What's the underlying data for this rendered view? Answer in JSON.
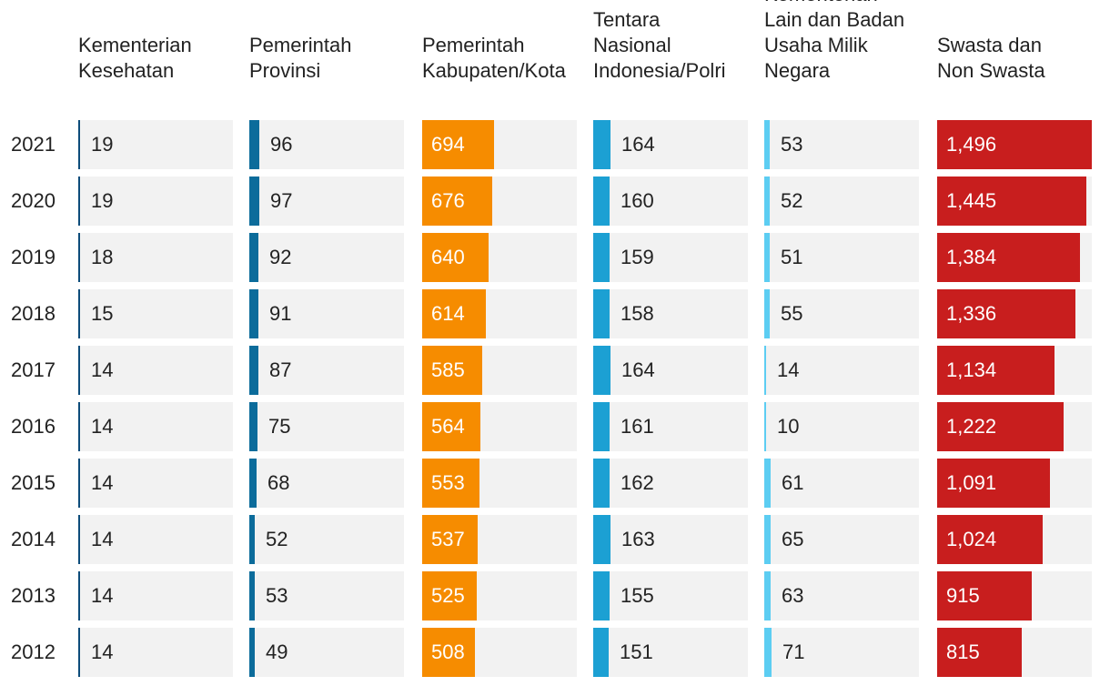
{
  "chart_data": {
    "type": "bar",
    "title": "",
    "categories": [
      "2021",
      "2020",
      "2019",
      "2018",
      "2017",
      "2016",
      "2015",
      "2014",
      "2013",
      "2012"
    ],
    "series": [
      {
        "name": "Kementerian\nKesehatan",
        "color": "#0d4c7a",
        "max": 1496,
        "values": [
          19,
          19,
          18,
          15,
          14,
          14,
          14,
          14,
          14,
          14
        ]
      },
      {
        "name": "Pemerintah\nProvinsi",
        "color": "#0c6c9b",
        "max": 1496,
        "values": [
          96,
          97,
          92,
          91,
          87,
          75,
          68,
          52,
          53,
          49
        ]
      },
      {
        "name": "Pemerintah\nKabupaten/Kota",
        "color": "#f68c00",
        "max": 1496,
        "values": [
          694,
          676,
          640,
          614,
          585,
          564,
          553,
          537,
          525,
          508
        ]
      },
      {
        "name": "Tentara\nNasional\nIndonesia/Polri",
        "color": "#1ca0d3",
        "max": 1496,
        "values": [
          164,
          160,
          159,
          158,
          164,
          161,
          162,
          163,
          155,
          151
        ]
      },
      {
        "name": "Kementerian\nLain dan Badan\nUsaha Milik\nNegara",
        "color": "#5ccdf2",
        "max": 1496,
        "values": [
          53,
          52,
          51,
          55,
          14,
          10,
          61,
          65,
          63,
          71
        ]
      },
      {
        "name": "Swasta dan\nNon Swasta",
        "color": "#c81e1e",
        "max": 1496,
        "values": [
          1496,
          1445,
          1384,
          1336,
          1134,
          1222,
          1091,
          1024,
          915,
          815
        ]
      }
    ]
  }
}
